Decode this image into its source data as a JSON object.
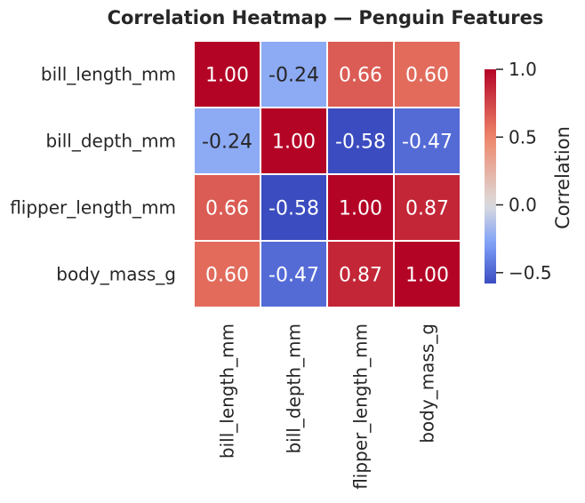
{
  "chart_data": {
    "type": "heatmap",
    "title": "Correlation Heatmap — Penguin Features",
    "row_labels": [
      "bill_length_mm",
      "bill_depth_mm",
      "flipper_length_mm",
      "body_mass_g"
    ],
    "col_labels": [
      "bill_length_mm",
      "bill_depth_mm",
      "flipper_length_mm",
      "body_mass_g"
    ],
    "values": [
      [
        1.0,
        -0.24,
        0.66,
        0.6
      ],
      [
        -0.24,
        1.0,
        -0.58,
        -0.47
      ],
      [
        0.66,
        -0.58,
        1.0,
        0.87
      ],
      [
        0.6,
        -0.47,
        0.87,
        1.0
      ]
    ],
    "value_format": "2 decimals",
    "colormap": "coolwarm",
    "color_range": [
      -0.58,
      1.0
    ],
    "colorbar": {
      "label": "Correlation",
      "ticks": [
        1.0,
        0.5,
        0.0,
        -0.5
      ],
      "tick_labels": [
        "1.0",
        "0.5",
        "0.0",
        "−0.5"
      ]
    },
    "cell_separator_color": "#ffffff"
  }
}
